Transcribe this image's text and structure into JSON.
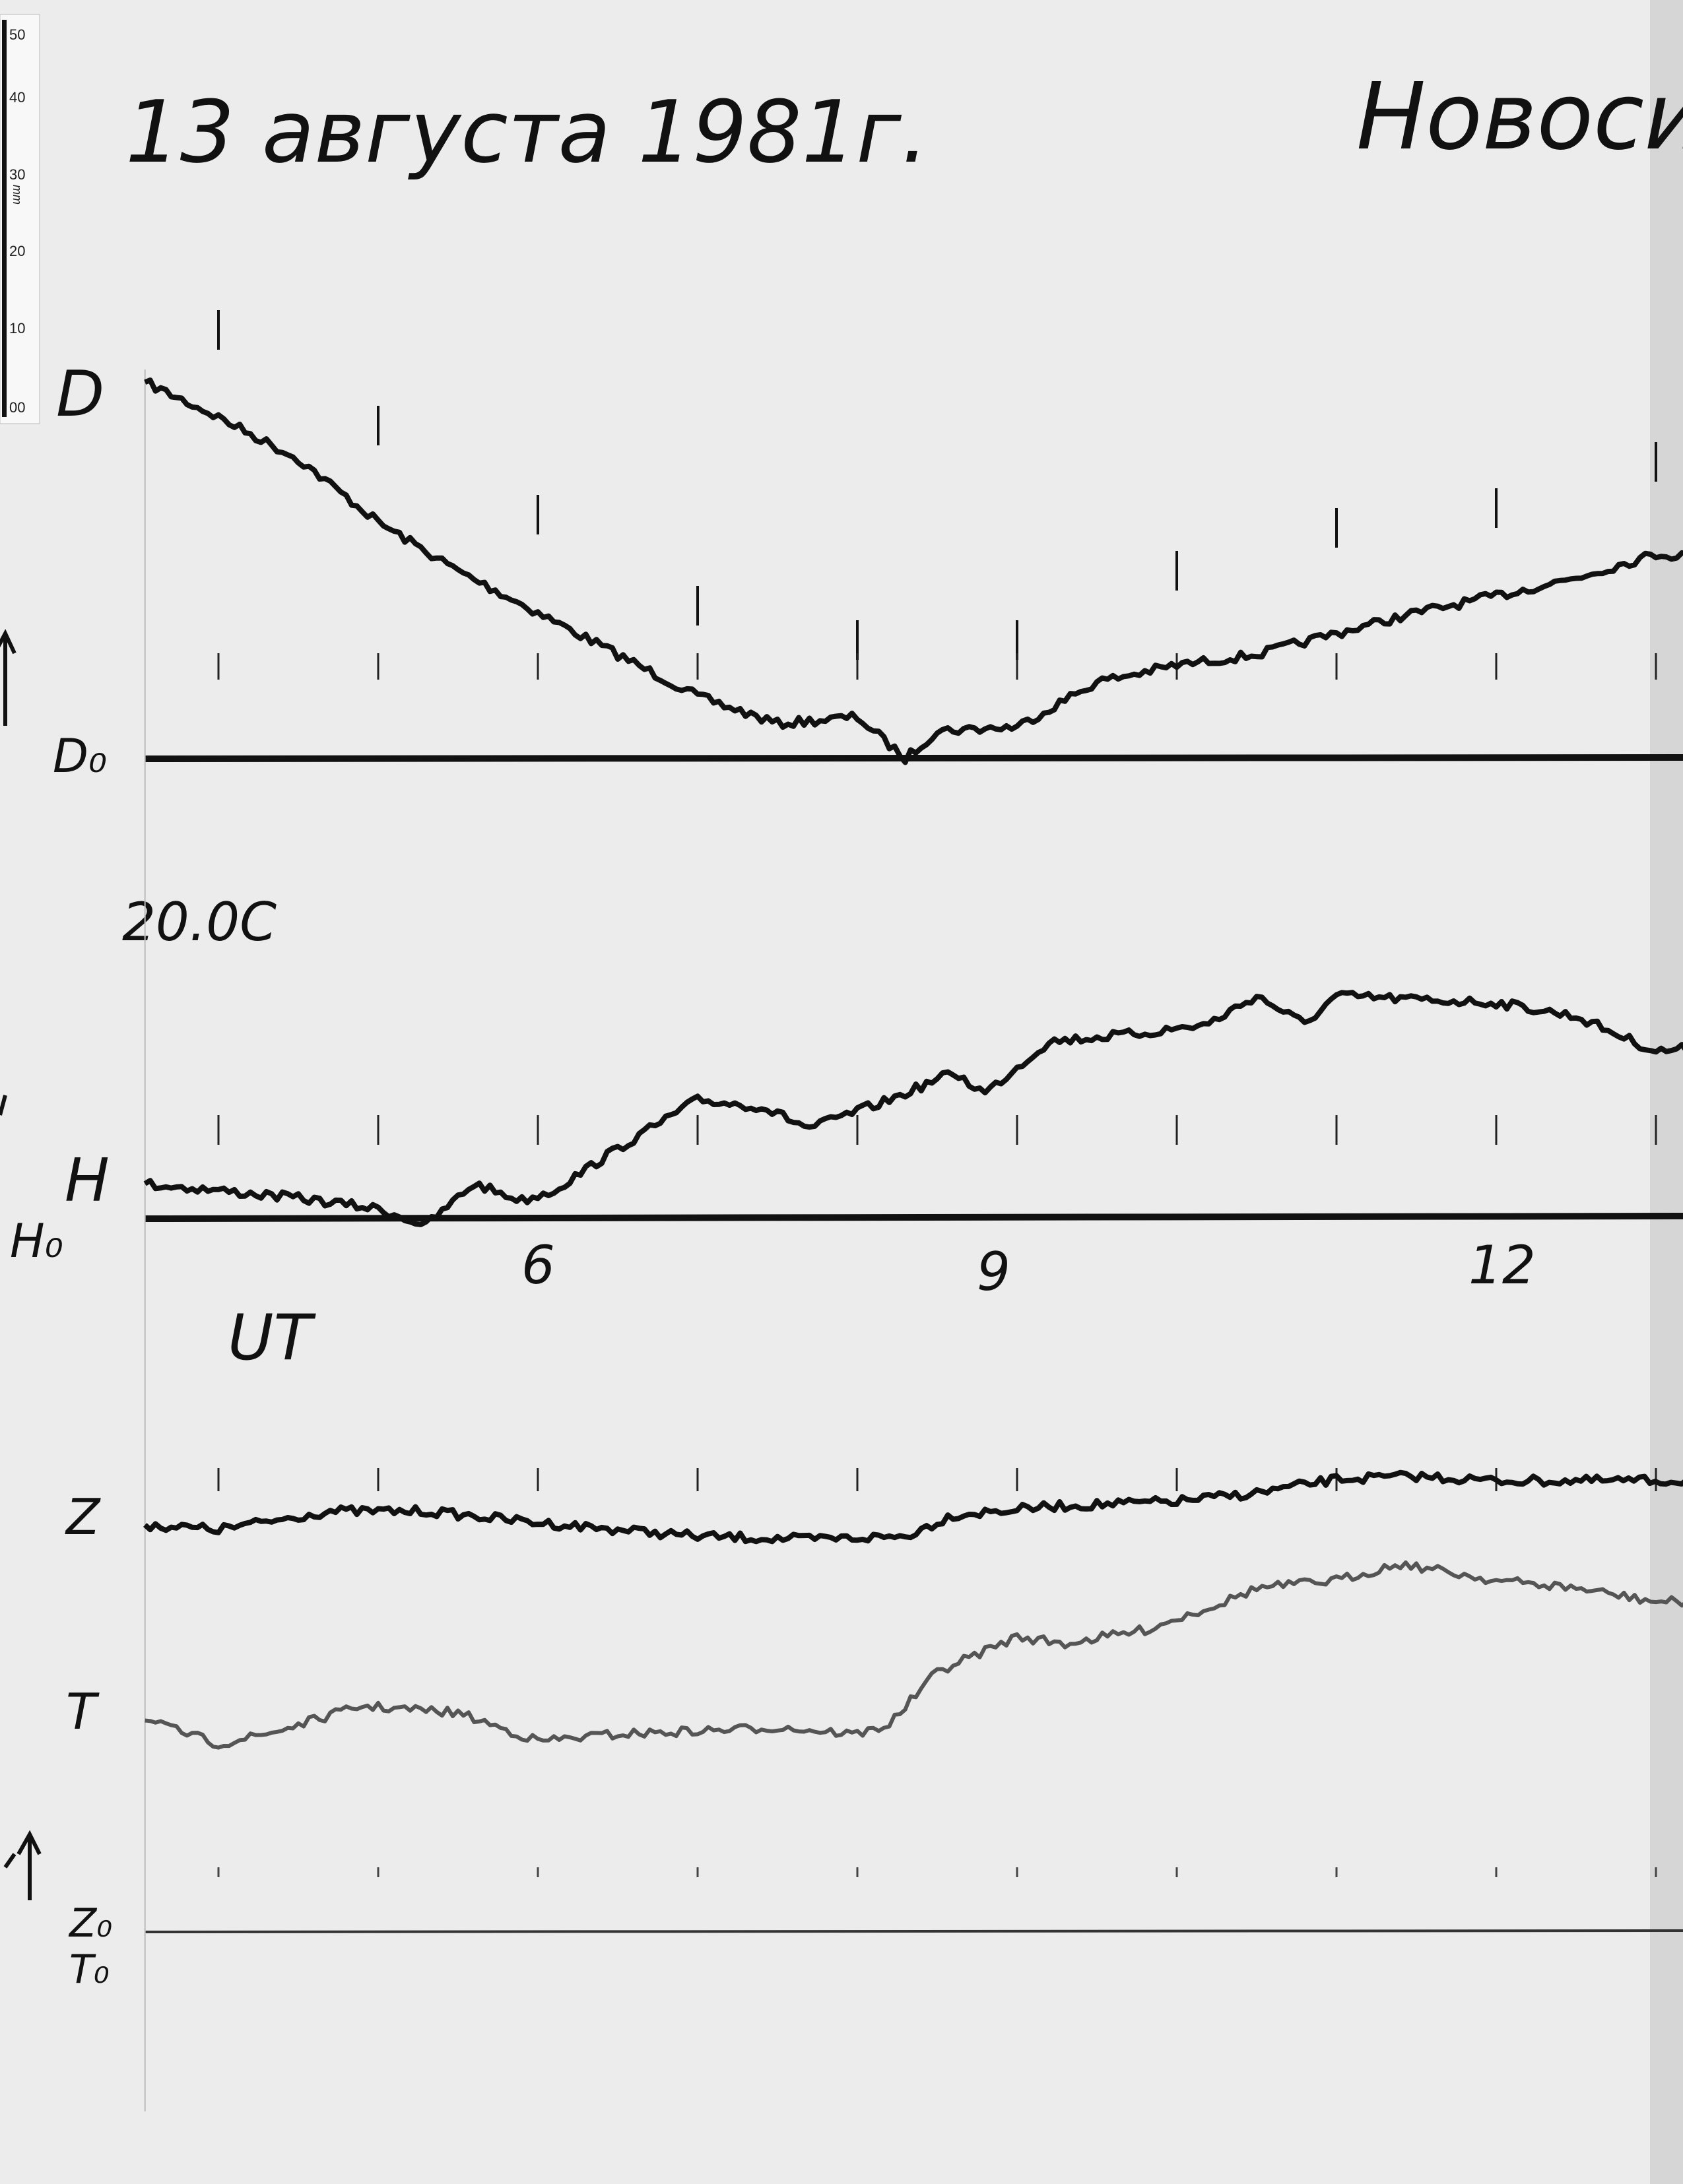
{
  "header": {
    "date": "13 августа 1981г.",
    "station": "Новоси"
  },
  "ruler": {
    "unit": "mm",
    "ticks": [
      "50",
      "40",
      "30",
      "20",
      "10",
      "00"
    ]
  },
  "labels": {
    "D": "D",
    "D0": "D₀",
    "temperature": "20.0C",
    "H": "H",
    "H0": "H₀",
    "UT": "UT",
    "Z": "Z",
    "T": "T",
    "Z0": "Z₀",
    "T0": "T₀"
  },
  "chart_data": {
    "type": "line",
    "xlabel": "UT",
    "x_tick_labels": [
      "6",
      "9",
      "12"
    ],
    "x_ticks": [
      6,
      9,
      12
    ],
    "xlim": [
      3.54,
      13.26
    ],
    "y_unit": "mm above baseline",
    "grid": false,
    "series": [
      {
        "name": "D",
        "baseline": "D₀",
        "color": "#111111",
        "x": [
          3.54,
          4,
          4.5,
          5,
          5.5,
          6,
          6.5,
          7,
          7.5,
          8,
          8.3,
          8.5,
          9,
          9.5,
          10,
          10.5,
          11,
          11.5,
          12,
          12.5,
          13,
          13.26
        ],
        "y": [
          49.5,
          44.9,
          39.4,
          31.1,
          24.7,
          19.2,
          13.7,
          8.2,
          4.6,
          5.5,
          0,
          3.7,
          4.2,
          10.1,
          12.3,
          13.7,
          16.5,
          19.2,
          21.4,
          23.8,
          26.9,
          26.6
        ]
      },
      {
        "name": "H",
        "baseline": "H₀",
        "color": "#111111",
        "x": [
          3.54,
          4,
          4.5,
          5,
          5.3,
          5.6,
          5.9,
          6.1,
          6.5,
          7,
          7.4,
          7.7,
          8.2,
          8.6,
          8.8,
          9.2,
          9.8,
          10.2,
          10.5,
          10.8,
          11,
          11.5,
          12,
          12.5,
          13,
          13.26
        ],
        "y": [
          4.6,
          3.7,
          2.7,
          1.3,
          -0.9,
          4.6,
          2.4,
          3.7,
          9.2,
          15.6,
          14.7,
          11.9,
          15.6,
          19.2,
          16.5,
          23.3,
          24.4,
          25.6,
          29.3,
          25.6,
          29.3,
          28.8,
          28.4,
          26.6,
          22.0,
          22.5
        ]
      },
      {
        "name": "Z",
        "baseline": "Z₀",
        "color": "#111111",
        "x": [
          3.54,
          4,
          4.7,
          5.3,
          6,
          7,
          7.7,
          8.3,
          8.6,
          9.2,
          10,
          10.5,
          11,
          11.5,
          12,
          13.26
        ],
        "y": [
          53.5,
          52.9,
          55.3,
          55.3,
          53.8,
          52.0,
          51.6,
          52.0,
          54.8,
          55.9,
          56.6,
          57.7,
          59.5,
          59.9,
          59.3,
          59.3
        ]
      },
      {
        "name": "T",
        "baseline": "T₀",
        "color": "#555555",
        "x": [
          3.54,
          4,
          4.3,
          4.9,
          5.5,
          6,
          6.5,
          7,
          7.5,
          8,
          8.2,
          8.5,
          9,
          9.3,
          9.8,
          10.3,
          10.5,
          11,
          11.4,
          12,
          12.5,
          13,
          13.26
        ],
        "y": [
          27.8,
          24.7,
          26.0,
          29.7,
          28.8,
          25.1,
          26.0,
          26.4,
          26.9,
          26.0,
          27.3,
          34.2,
          38.8,
          37.9,
          39.7,
          43.4,
          45.2,
          46.2,
          48.4,
          46.2,
          45.2,
          43.4,
          43.4
        ]
      }
    ]
  }
}
